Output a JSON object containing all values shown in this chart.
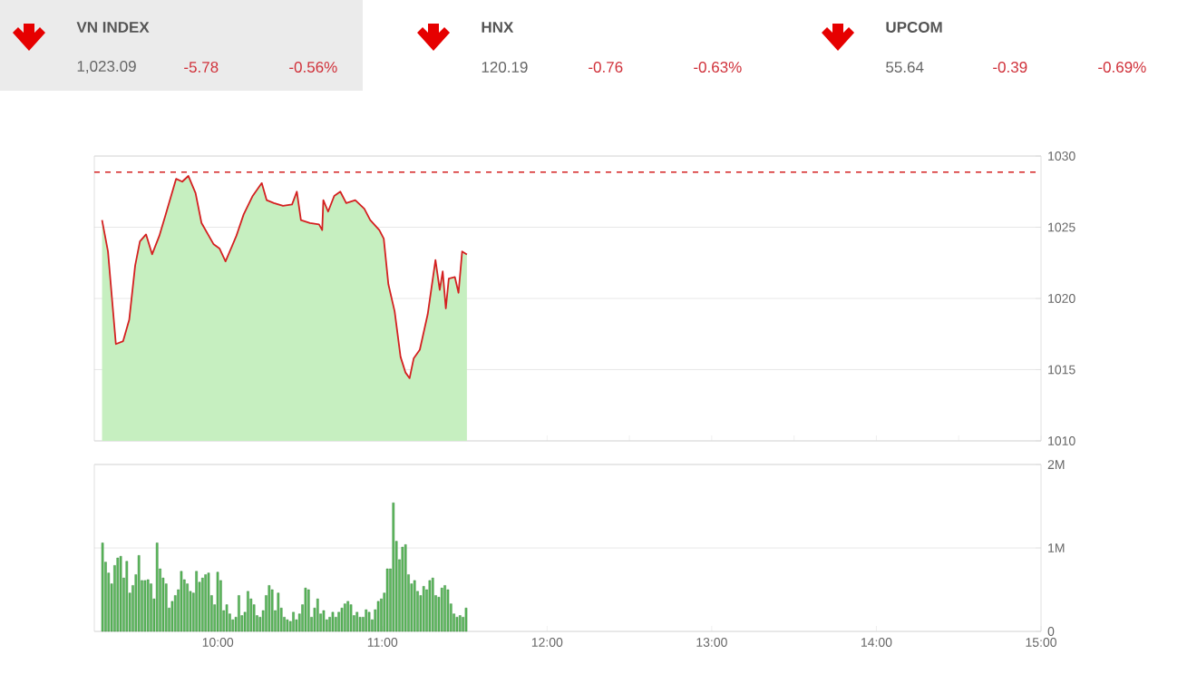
{
  "chart_data": [
    {
      "type": "other",
      "title": "VN INDEX",
      "annotations": [
        "1,023.09",
        "-5.78",
        "-0.56%"
      ]
    },
    {
      "type": "other",
      "title": "HNX",
      "annotations": [
        "120.19",
        "-0.76",
        "-0.63%"
      ]
    },
    {
      "type": "other",
      "title": "UPCOM",
      "annotations": [
        "55.64",
        "-0.39",
        "-0.69%"
      ]
    },
    {
      "type": "area",
      "xlim": [
        9.25,
        15
      ],
      "ylim": [
        1010,
        1030
      ],
      "yticks": [
        1010,
        1015,
        1020,
        1025,
        1030
      ],
      "tick_labels": "y",
      "grid": "y",
      "ref_lines": [
        {
          "axis": "y",
          "value": 1028.87,
          "color": "#d42020",
          "line_style": "dashed"
        }
      ],
      "series": [
        {
          "color": "#c6efc0",
          "x": [
            9.297,
            9.333,
            9.381,
            9.425,
            9.462,
            9.498,
            9.527,
            9.564,
            9.601,
            9.645,
            9.681,
            9.747,
            9.784,
            9.821,
            9.865,
            9.901,
            9.975,
            10.011,
            10.047,
            10.113,
            10.157,
            10.212,
            10.267,
            10.297,
            10.341,
            10.396,
            10.451,
            10.48,
            10.505,
            10.56,
            10.615,
            10.634,
            10.641,
            10.67,
            10.707,
            10.744,
            10.78,
            10.835,
            10.89,
            10.926,
            10.981,
            11.008,
            11.036,
            11.074,
            11.11,
            11.14,
            11.165,
            11.19,
            11.227,
            11.275,
            11.322,
            11.348,
            11.366,
            11.385,
            11.403,
            11.44,
            11.462,
            11.484,
            11.513
          ],
          "values": [
            1025.5,
            1023.3,
            1016.8,
            1017.0,
            1018.5,
            1022.3,
            1024.0,
            1024.5,
            1023.1,
            1024.4,
            1025.8,
            1028.4,
            1028.2,
            1028.6,
            1027.4,
            1025.3,
            1023.8,
            1023.5,
            1022.6,
            1024.4,
            1025.9,
            1027.2,
            1028.1,
            1026.9,
            1026.7,
            1026.5,
            1026.6,
            1027.5,
            1025.5,
            1025.3,
            1025.2,
            1024.8,
            1026.9,
            1026.1,
            1027.2,
            1027.5,
            1026.7,
            1026.9,
            1026.3,
            1025.5,
            1024.8,
            1024.2,
            1021.0,
            1019.1,
            1015.9,
            1014.8,
            1014.4,
            1015.8,
            1016.4,
            1018.9,
            1022.7,
            1020.6,
            1021.9,
            1019.3,
            1021.4,
            1021.5,
            1020.4,
            1023.3,
            1023.09
          ]
        },
        {
          "type": "line",
          "color": "#d42020",
          "x": [
            9.297,
            9.333,
            9.381,
            9.425,
            9.462,
            9.498,
            9.527,
            9.564,
            9.601,
            9.645,
            9.681,
            9.747,
            9.784,
            9.821,
            9.865,
            9.901,
            9.975,
            10.011,
            10.047,
            10.113,
            10.157,
            10.212,
            10.267,
            10.297,
            10.341,
            10.396,
            10.451,
            10.48,
            10.505,
            10.56,
            10.615,
            10.634,
            10.641,
            10.67,
            10.707,
            10.744,
            10.78,
            10.835,
            10.89,
            10.926,
            10.981,
            11.008,
            11.036,
            11.074,
            11.11,
            11.14,
            11.165,
            11.19,
            11.227,
            11.275,
            11.322,
            11.348,
            11.366,
            11.385,
            11.403,
            11.44,
            11.462,
            11.484,
            11.513
          ],
          "values": [
            1025.5,
            1023.3,
            1016.8,
            1017.0,
            1018.5,
            1022.3,
            1024.0,
            1024.5,
            1023.1,
            1024.4,
            1025.8,
            1028.4,
            1028.2,
            1028.6,
            1027.4,
            1025.3,
            1023.8,
            1023.5,
            1022.6,
            1024.4,
            1025.9,
            1027.2,
            1028.1,
            1026.9,
            1026.7,
            1026.5,
            1026.6,
            1027.5,
            1025.5,
            1025.3,
            1025.2,
            1024.8,
            1026.9,
            1026.1,
            1027.2,
            1027.5,
            1026.7,
            1026.9,
            1026.3,
            1025.5,
            1024.8,
            1024.2,
            1021.0,
            1019.1,
            1015.9,
            1014.8,
            1014.4,
            1015.8,
            1016.4,
            1018.9,
            1022.7,
            1020.6,
            1021.9,
            1019.3,
            1021.4,
            1021.5,
            1020.4,
            1023.3,
            1023.09
          ]
        }
      ]
    },
    {
      "type": "bar",
      "xlim": [
        9.25,
        15
      ],
      "ylim": [
        0,
        2000000
      ],
      "yticks": [
        0,
        {
          "value": 1000000,
          "label": "1M"
        },
        {
          "value": 2000000,
          "label": "2M"
        }
      ],
      "xticks": [
        {
          "value": 10,
          "label": "10:00"
        },
        {
          "value": 11,
          "label": "11:00"
        },
        {
          "value": 12,
          "label": "12:00"
        },
        {
          "value": 13,
          "label": "13:00"
        },
        {
          "value": 14,
          "label": "14:00"
        },
        {
          "value": 15,
          "label": "15:00"
        }
      ],
      "grid": "y",
      "series": [
        {
          "color": "#5cb85c",
          "x": [
            9.3,
            9.3184,
            9.3368,
            9.3552,
            9.3736,
            9.392,
            9.4104,
            9.4288,
            9.4472,
            9.4656,
            9.484,
            9.5024,
            9.5208,
            9.5392,
            9.5576,
            9.576,
            9.5944,
            9.6128,
            9.6312,
            9.6496,
            9.668,
            9.6864,
            9.7048,
            9.7232,
            9.7416,
            9.76,
            9.7784,
            9.7968,
            9.8152,
            9.8336,
            9.852,
            9.8704,
            9.8888,
            9.9072,
            9.9256,
            9.944,
            9.9624,
            9.9808,
            9.9992,
            10.0176,
            10.036,
            10.0544,
            10.0728,
            10.0912,
            10.1096,
            10.128,
            10.1464,
            10.1648,
            10.1832,
            10.2016,
            10.22,
            10.2384,
            10.2568,
            10.2752,
            10.2936,
            10.312,
            10.3304,
            10.3488,
            10.3672,
            10.3856,
            10.404,
            10.4224,
            10.4408,
            10.4592,
            10.4776,
            10.496,
            10.5144,
            10.5328,
            10.5512,
            10.5696,
            10.588,
            10.6064,
            10.6248,
            10.6432,
            10.6616,
            10.68,
            10.6984,
            10.7168,
            10.7352,
            10.7536,
            10.772,
            10.7904,
            10.8088,
            10.8272,
            10.8456,
            10.864,
            10.8824,
            10.9008,
            10.9192,
            10.9376,
            10.956,
            10.9744,
            10.9928,
            11.0112,
            11.0296,
            11.048,
            11.0664,
            11.0848,
            11.1032,
            11.1216,
            11.14,
            11.1584,
            11.1768,
            11.1952,
            11.2136,
            11.232,
            11.2504,
            11.2688,
            11.2872,
            11.3056,
            11.324,
            11.3424,
            11.3608,
            11.3792,
            11.3976,
            11.416,
            11.4344,
            11.4528,
            11.4712,
            11.4896,
            11.508
          ],
          "values": [
            1060000,
            830000,
            700000,
            570000,
            790000,
            880000,
            900000,
            640000,
            840000,
            460000,
            550000,
            680000,
            910000,
            610000,
            610000,
            620000,
            570000,
            390000,
            1060000,
            750000,
            640000,
            570000,
            280000,
            360000,
            430000,
            500000,
            720000,
            620000,
            570000,
            480000,
            460000,
            720000,
            590000,
            640000,
            680000,
            700000,
            430000,
            320000,
            710000,
            610000,
            250000,
            320000,
            210000,
            140000,
            170000,
            430000,
            190000,
            230000,
            480000,
            390000,
            320000,
            190000,
            170000,
            250000,
            430000,
            550000,
            500000,
            250000,
            460000,
            280000,
            170000,
            140000,
            120000,
            230000,
            140000,
            210000,
            320000,
            520000,
            500000,
            170000,
            280000,
            390000,
            210000,
            250000,
            140000,
            170000,
            230000,
            170000,
            230000,
            280000,
            330000,
            360000,
            320000,
            190000,
            230000,
            170000,
            170000,
            260000,
            230000,
            140000,
            260000,
            360000,
            390000,
            460000,
            750000,
            750000,
            1540000,
            1080000,
            860000,
            1010000,
            1040000,
            680000,
            570000,
            610000,
            480000,
            430000,
            540000,
            500000,
            610000,
            640000,
            430000,
            410000,
            520000,
            550000,
            500000,
            330000,
            210000,
            170000,
            190000,
            170000,
            280000
          ]
        }
      ]
    }
  ]
}
